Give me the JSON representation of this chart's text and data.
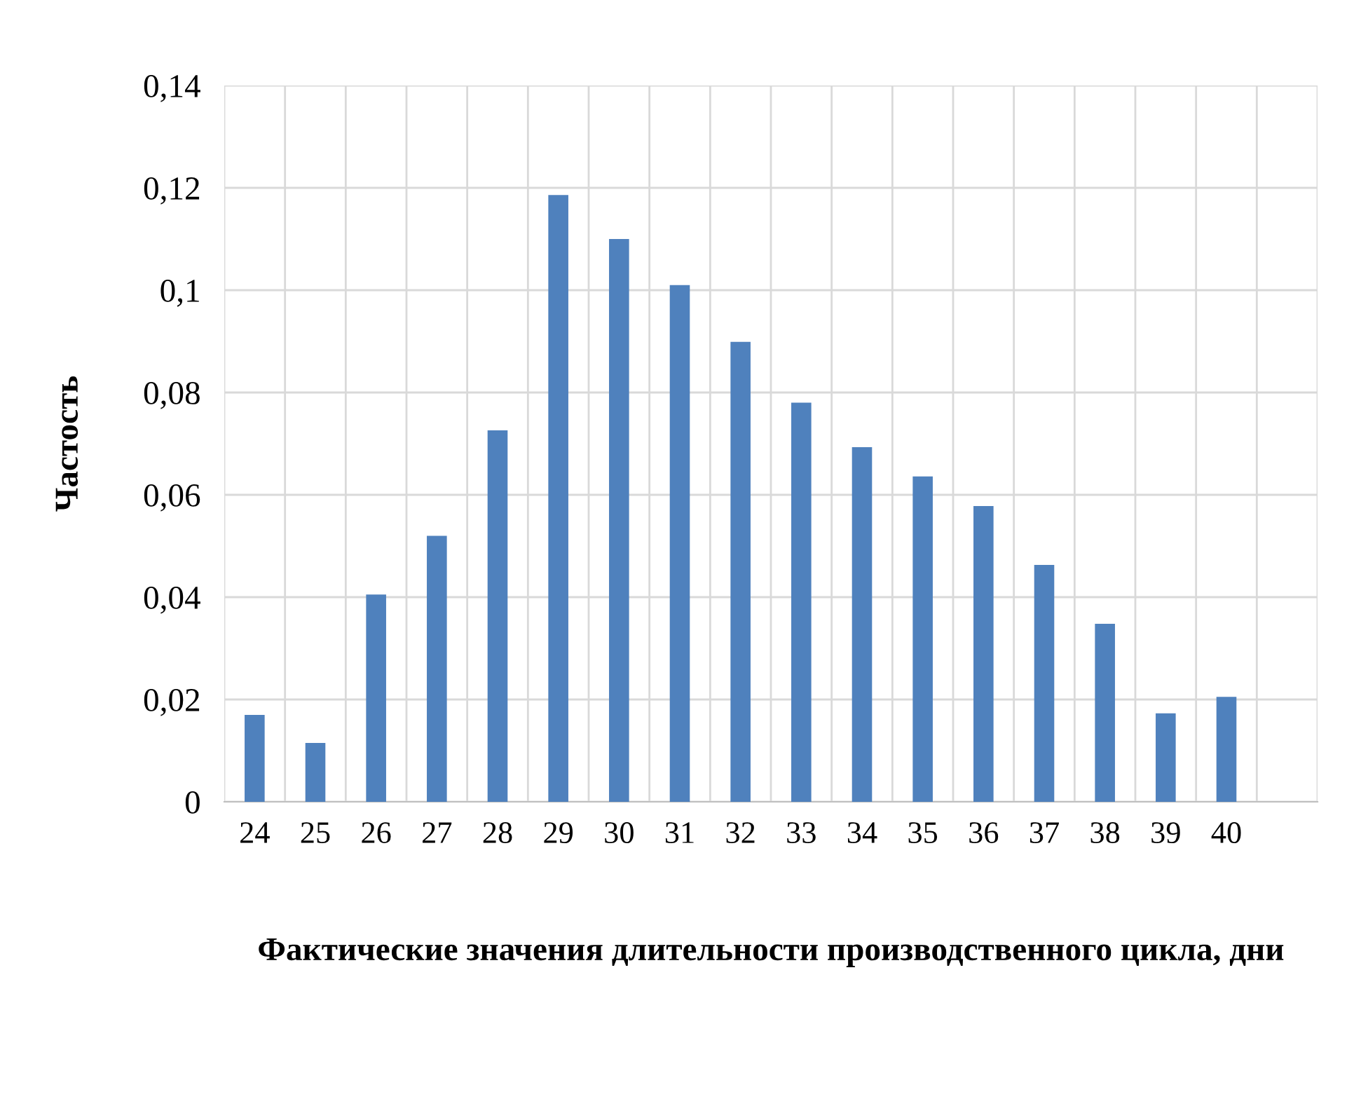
{
  "chart_data": {
    "type": "bar",
    "xlabel": "Фактические значения длительности производственного цикла, дни",
    "ylabel": "Частость",
    "categories": [
      "24",
      "25",
      "26",
      "27",
      "28",
      "29",
      "30",
      "31",
      "32",
      "33",
      "34",
      "35",
      "36",
      "37",
      "38",
      "39",
      "40",
      null
    ],
    "values": [
      0.017,
      0.0115,
      0.0405,
      0.052,
      0.0726,
      0.1186,
      0.11,
      0.101,
      0.0899,
      0.078,
      0.0693,
      0.0636,
      0.0578,
      0.0463,
      0.0348,
      0.0173,
      0.0205,
      null
    ],
    "color": "#4f81bd",
    "ylim": [
      0,
      0.14
    ],
    "yticks": [
      0,
      {
        "value": 0.02,
        "label": "0,02"
      },
      {
        "value": 0.04,
        "label": "0,04"
      },
      {
        "value": 0.06,
        "label": "0,06"
      },
      {
        "value": 0.08,
        "label": "0,08"
      },
      {
        "value": 0.1,
        "label": "0,1"
      },
      {
        "value": 0.12,
        "label": "0,12"
      },
      {
        "value": 0.14,
        "label": "0,14"
      }
    ],
    "grid": true
  }
}
